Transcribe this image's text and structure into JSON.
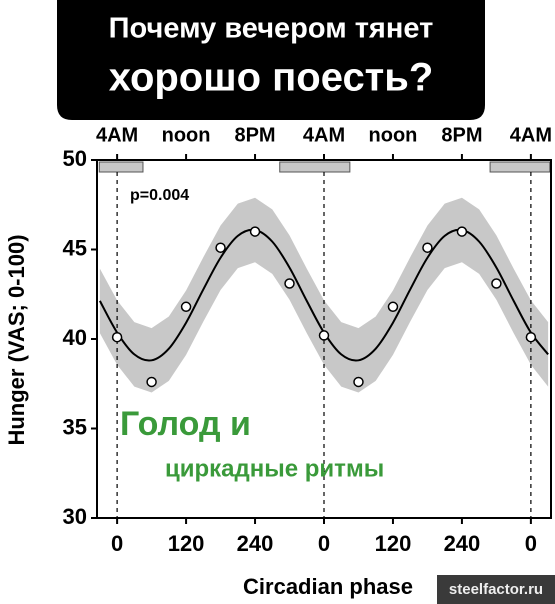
{
  "header": {
    "title_line1": "Почему вечером тянет",
    "title_line2": "хорошо поесть?"
  },
  "chart_data": {
    "type": "line",
    "xlabel": "Circadian phase",
    "ylabel": "Hunger (VAS; 0-100)",
    "xlim": [
      -35,
      755
    ],
    "ylim": [
      30,
      50
    ],
    "yticks": [
      30,
      35,
      40,
      45,
      50
    ],
    "xticks": [
      0,
      120,
      240,
      {
        "value": 360,
        "label": "0"
      },
      {
        "value": 480,
        "label": "120"
      },
      {
        "value": 600,
        "label": "240"
      },
      {
        "value": 720,
        "label": "0"
      }
    ],
    "top_xticks": [
      {
        "value": 0,
        "label": "4AM"
      },
      {
        "value": 120,
        "label": "noon"
      },
      {
        "value": 240,
        "label": "8PM"
      },
      {
        "value": 360,
        "label": "4AM"
      },
      {
        "value": 480,
        "label": "noon"
      },
      {
        "value": 600,
        "label": "8PM"
      },
      {
        "value": 720,
        "label": "4AM"
      }
    ],
    "sleep_periods": [
      [
        -31,
        45
      ],
      [
        283,
        405
      ],
      [
        649,
        753
      ]
    ],
    "dashed_lines": [
      0,
      360,
      720
    ],
    "fit": {
      "color": "#000000",
      "band_color": "#c8c8c8",
      "x": [
        -30,
        0,
        30,
        60,
        90,
        120,
        150,
        180,
        210,
        240,
        270,
        300,
        330,
        360,
        390,
        420,
        450,
        480,
        510,
        540,
        570,
        600,
        630,
        660,
        690,
        720,
        750
      ],
      "values": [
        42.13,
        40.36,
        39.14,
        38.81,
        39.46,
        40.91,
        42.77,
        44.54,
        45.76,
        46.09,
        45.44,
        43.99,
        42.13,
        40.36,
        39.14,
        38.81,
        39.46,
        40.91,
        42.77,
        44.54,
        45.76,
        46.09,
        45.44,
        43.99,
        42.13,
        40.36,
        39.14
      ],
      "lower": [
        40.33,
        38.56,
        37.34,
        37.01,
        37.66,
        39.11,
        40.97,
        42.74,
        43.96,
        44.29,
        43.64,
        42.19,
        40.33,
        38.56,
        37.34,
        37.01,
        37.66,
        39.11,
        40.97,
        42.74,
        43.96,
        44.29,
        43.64,
        42.19,
        40.33,
        38.56,
        37.34
      ],
      "upper": [
        43.93,
        42.16,
        40.94,
        40.61,
        41.26,
        42.71,
        44.57,
        46.34,
        47.56,
        47.89,
        47.24,
        45.79,
        43.93,
        42.16,
        40.94,
        40.61,
        41.26,
        42.71,
        44.57,
        46.34,
        47.56,
        47.89,
        47.24,
        45.79,
        43.93,
        42.16,
        40.94
      ]
    },
    "points": {
      "x": [
        0,
        60,
        120,
        180,
        240,
        300,
        360,
        420,
        480,
        540,
        600,
        660,
        720
      ],
      "values": [
        40.1,
        37.6,
        41.8,
        45.1,
        46.0,
        43.1,
        40.2,
        37.6,
        41.8,
        45.1,
        46.0,
        43.1,
        40.1
      ]
    },
    "annotations": {
      "p_value": "p=0.004",
      "overlay_line1": "Голод и",
      "overlay_line2": "циркадные ритмы"
    }
  },
  "watermark": "steelfactor.ru"
}
